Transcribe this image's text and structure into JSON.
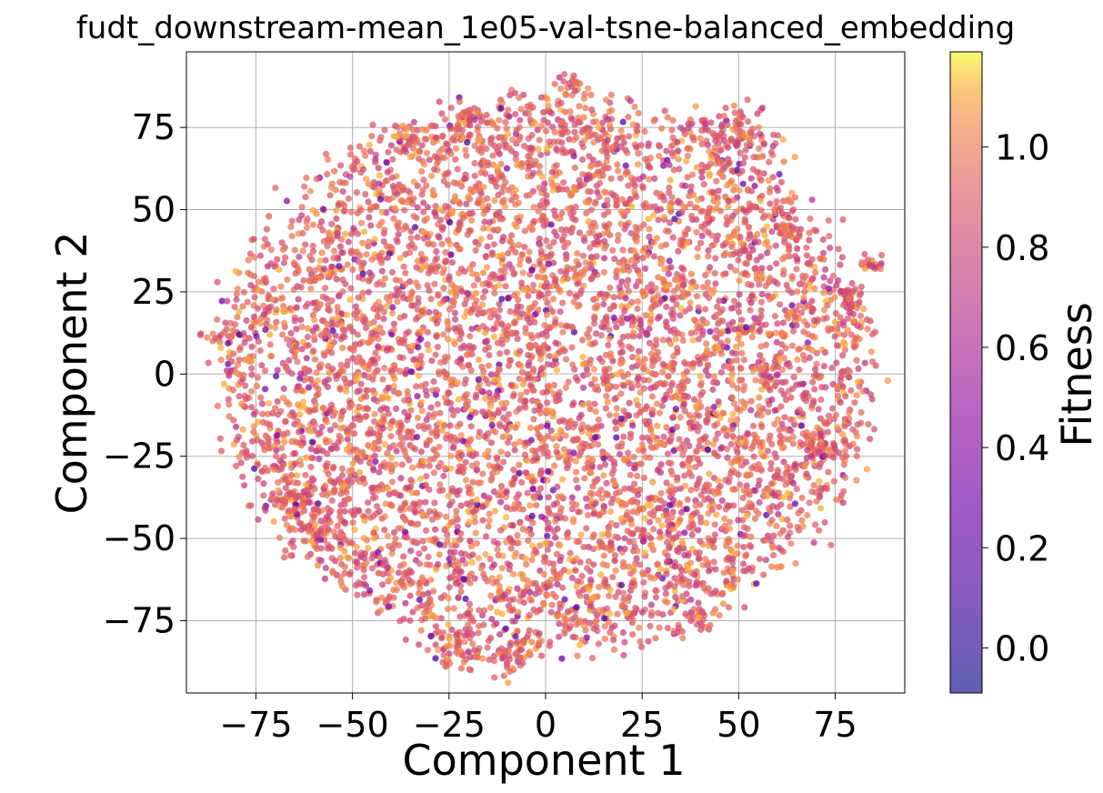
{
  "chart_data": {
    "type": "scatter",
    "title": "fudt_downstream-mean_1e05-val-tsne-balanced_embedding",
    "xlabel": "Component 1",
    "ylabel": "Component 2",
    "xlim": [
      -93,
      93
    ],
    "ylim": [
      -97,
      98
    ],
    "xticks": [
      -75,
      -50,
      -25,
      0,
      25,
      50,
      75
    ],
    "xtick_labels": [
      "−75",
      "−50",
      "−25",
      "0",
      "25",
      "50",
      "75"
    ],
    "yticks": [
      -75,
      -50,
      -25,
      0,
      25,
      50,
      75
    ],
    "ytick_labels": [
      "−75",
      "−50",
      "−25",
      "0",
      "25",
      "50",
      "75"
    ],
    "grid": true,
    "colorbar": {
      "label": "Fitness",
      "range": [
        -0.09,
        1.19
      ],
      "ticks": [
        0.0,
        0.2,
        0.4,
        0.6,
        0.8,
        1.0
      ],
      "tick_labels": [
        "0.0",
        "0.2",
        "0.4",
        "0.6",
        "0.8",
        "1.0"
      ],
      "colormap": "plasma",
      "alpha": 0.7
    },
    "point_cloud": {
      "description_of_distribution": "roughly circular cloud of ~6000 points centered near (0,0), radius ~85, fitness mostly 0.8-1.1 with sparse low-fitness purple points",
      "center": [
        0,
        0
      ],
      "radius": 85,
      "count": 6000,
      "fitness_mean": 0.92,
      "fitness_low_fraction": 0.03,
      "clusters": [
        {
          "center": [
            48,
            73
          ],
          "spread": 6,
          "count": 120
        },
        {
          "center": [
            7,
            88
          ],
          "spread": 2,
          "count": 25
        },
        {
          "center": [
            -22,
            -84
          ],
          "spread": 4,
          "count": 60
        },
        {
          "center": [
            -8,
            -86
          ],
          "spread": 4,
          "count": 50
        },
        {
          "center": [
            72,
            -22
          ],
          "spread": 3,
          "count": 40
        },
        {
          "center": [
            78,
            22
          ],
          "spread": 3,
          "count": 40
        },
        {
          "center": [
            84,
            34
          ],
          "spread": 2,
          "count": 20
        },
        {
          "center": [
            -65,
            -38
          ],
          "spread": 3,
          "count": 40
        },
        {
          "center": [
            -82,
            12
          ],
          "spread": 3,
          "count": 25
        },
        {
          "center": [
            -36,
            72
          ],
          "spread": 2,
          "count": 20
        },
        {
          "center": [
            -20,
            78
          ],
          "spread": 2,
          "count": 25
        },
        {
          "center": [
            63,
            44
          ],
          "spread": 2,
          "count": 25
        },
        {
          "center": [
            -60,
            -48
          ],
          "spread": 3,
          "count": 30
        },
        {
          "center": [
            40,
            -74
          ],
          "spread": 2,
          "count": 20
        }
      ]
    }
  }
}
